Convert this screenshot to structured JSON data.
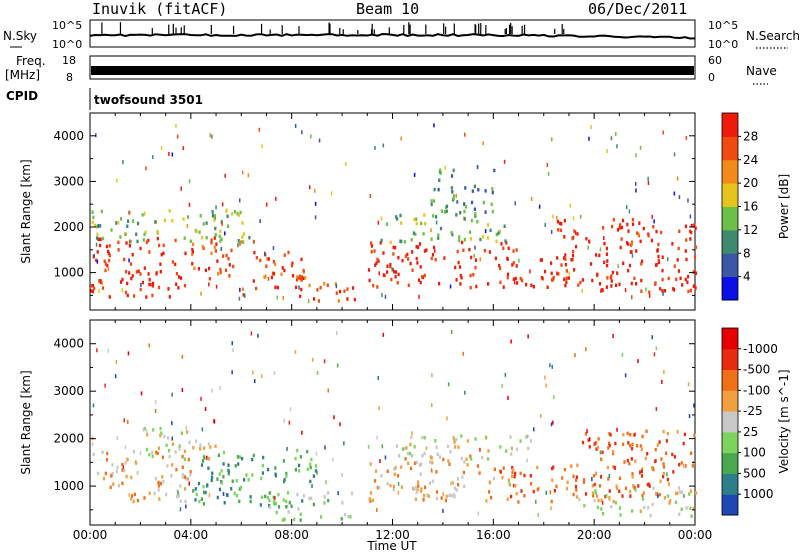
{
  "header": {
    "station": "Inuvik (fitACF)",
    "beam": "Beam 10",
    "date": "06/Dec/2011"
  },
  "side_labels": {
    "nsky": "N.Sky",
    "freq": "Freq.",
    "freq_unit": "[MHz]",
    "cpid": "CPID",
    "nsearch": "N.Search",
    "nave": "Nave"
  },
  "strip_ticks": {
    "noise_left": [
      "10^5",
      "10^0"
    ],
    "noise_right": [
      "10^5",
      "10^0"
    ],
    "freq_left": [
      "18",
      "8"
    ],
    "nave_right": [
      "60",
      "0"
    ]
  },
  "cpid_text": "twofsound 3501",
  "x_axis": {
    "label": "Time UT",
    "ticks": [
      "00:00",
      "04:00",
      "08:00",
      "12:00",
      "16:00",
      "20:00",
      "00:00"
    ]
  },
  "chart_data": [
    {
      "type": "heatmap",
      "name": "power-panel",
      "ylabel": "Slant Range [km]",
      "y_ticks": [
        1000,
        2000,
        3000,
        4000
      ],
      "ylim": [
        180,
        4500
      ],
      "xlim_hours": [
        0,
        24
      ],
      "colorbar": {
        "label": "Power [dB]",
        "ticks": [
          "4",
          "8",
          "12",
          "16",
          "20",
          "24",
          "28"
        ],
        "colors": [
          "#0a10e6",
          "#3a58a6",
          "#3d8a6e",
          "#6cbf47",
          "#e6c41e",
          "#f28a1a",
          "#f04a10",
          "#ee1a0c"
        ]
      },
      "regions": [
        {
          "t0": 0.0,
          "t1": 3.8,
          "r0": 500,
          "r1": 1800,
          "level": 7
        },
        {
          "t0": 3.8,
          "t1": 6.0,
          "r0": 900,
          "r1": 1800,
          "level": 6
        },
        {
          "t0": 6.0,
          "t1": 8.5,
          "r0": 500,
          "r1": 1500,
          "level": 6
        },
        {
          "t0": 8.0,
          "t1": 10.5,
          "r0": 400,
          "r1": 800,
          "level": 6
        },
        {
          "t0": 11.0,
          "t1": 17.0,
          "r0": 700,
          "r1": 1700,
          "level": 7
        },
        {
          "t0": 17.0,
          "t1": 19.0,
          "r0": 700,
          "r1": 1400,
          "level": 7
        },
        {
          "t0": 18.5,
          "t1": 24.0,
          "r0": 600,
          "r1": 2200,
          "level": 7
        },
        {
          "t0": 0.0,
          "t1": 6.5,
          "r0": 1700,
          "r1": 2400,
          "level": 3
        },
        {
          "t0": 11.5,
          "t1": 16.5,
          "r0": 1700,
          "r1": 2300,
          "level": 3
        },
        {
          "t0": 13.5,
          "t1": 16.0,
          "r0": 2300,
          "r1": 3300,
          "level": 2
        }
      ]
    },
    {
      "type": "heatmap",
      "name": "velocity-panel",
      "ylabel": "Slant Range [km]",
      "y_ticks": [
        1000,
        2000,
        3000,
        4000
      ],
      "ylim": [
        180,
        4500
      ],
      "xlim_hours": [
        0,
        24
      ],
      "colorbar": {
        "label": "Velocity [m s^-1]",
        "ticks": [
          "1000",
          "500",
          "100",
          "25",
          "-25",
          "-100",
          "-500",
          "-1000"
        ],
        "colors": [
          "#1e46b4",
          "#2e7e8a",
          "#4aa84e",
          "#7cd45c",
          "#c8c8c8",
          "#f0a040",
          "#f07018",
          "#e82a10",
          "#e60000"
        ]
      },
      "regions": [
        {
          "t0": 0.0,
          "t1": 4.0,
          "r0": 700,
          "r1": 1800,
          "level": 5
        },
        {
          "t0": 2.0,
          "t1": 5.0,
          "r0": 1600,
          "r1": 2300,
          "level": 4
        },
        {
          "t0": 4.0,
          "t1": 9.0,
          "r0": 600,
          "r1": 1800,
          "level": 2
        },
        {
          "t0": 7.0,
          "t1": 10.5,
          "r0": 300,
          "r1": 900,
          "level": 3
        },
        {
          "t0": 11.0,
          "t1": 16.0,
          "r0": 700,
          "r1": 1700,
          "level": 5
        },
        {
          "t0": 12.0,
          "t1": 17.5,
          "r0": 1600,
          "r1": 2100,
          "level": 4
        },
        {
          "t0": 16.0,
          "t1": 20.0,
          "r0": 700,
          "r1": 1500,
          "level": 6
        },
        {
          "t0": 19.5,
          "t1": 24.0,
          "r0": 800,
          "r1": 2200,
          "level": 6
        },
        {
          "t0": 19.0,
          "t1": 24.0,
          "r0": 400,
          "r1": 1000,
          "level": 4
        }
      ]
    }
  ]
}
